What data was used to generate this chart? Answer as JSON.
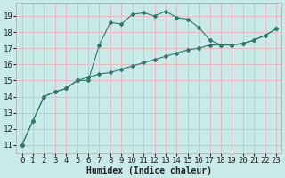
{
  "xlabel": "Humidex (Indice chaleur)",
  "background_color": "#c8eae8",
  "line_color": "#2d7a6a",
  "grid_color": "#e8b8c0",
  "xlim": [
    -0.5,
    23.5
  ],
  "ylim": [
    10.5,
    19.8
  ],
  "yticks": [
    11,
    12,
    13,
    14,
    15,
    16,
    17,
    18,
    19
  ],
  "xticks": [
    0,
    1,
    2,
    3,
    4,
    5,
    6,
    7,
    8,
    9,
    10,
    11,
    12,
    13,
    14,
    15,
    16,
    17,
    18,
    19,
    20,
    21,
    22,
    23
  ],
  "line1_x": [
    0,
    1,
    2,
    3,
    4,
    5,
    6,
    7,
    8,
    9,
    10,
    11,
    12,
    13,
    14,
    15,
    16,
    17,
    18,
    19,
    20,
    21,
    22,
    23
  ],
  "line1_y": [
    11.0,
    12.5,
    14.0,
    14.3,
    14.5,
    15.0,
    15.0,
    17.2,
    18.6,
    18.5,
    19.1,
    19.2,
    19.0,
    19.3,
    18.9,
    18.8,
    18.3,
    17.5,
    17.2,
    17.2,
    17.3,
    17.5,
    17.8,
    18.2
  ],
  "line2_x": [
    0,
    1,
    2,
    3,
    4,
    5,
    6,
    7,
    8,
    9,
    10,
    11,
    12,
    13,
    14,
    15,
    16,
    17,
    18,
    19,
    20,
    21,
    22,
    23
  ],
  "line2_y": [
    11.0,
    12.5,
    14.0,
    14.3,
    14.5,
    15.0,
    15.2,
    15.4,
    15.5,
    15.7,
    15.9,
    16.1,
    16.3,
    16.5,
    16.7,
    16.9,
    17.0,
    17.2,
    17.2,
    17.2,
    17.3,
    17.5,
    17.8,
    18.2
  ],
  "font_color": "#222222",
  "xlabel_fontsize": 7,
  "tick_fontsize": 6.5,
  "spine_color": "#aaaaaa"
}
